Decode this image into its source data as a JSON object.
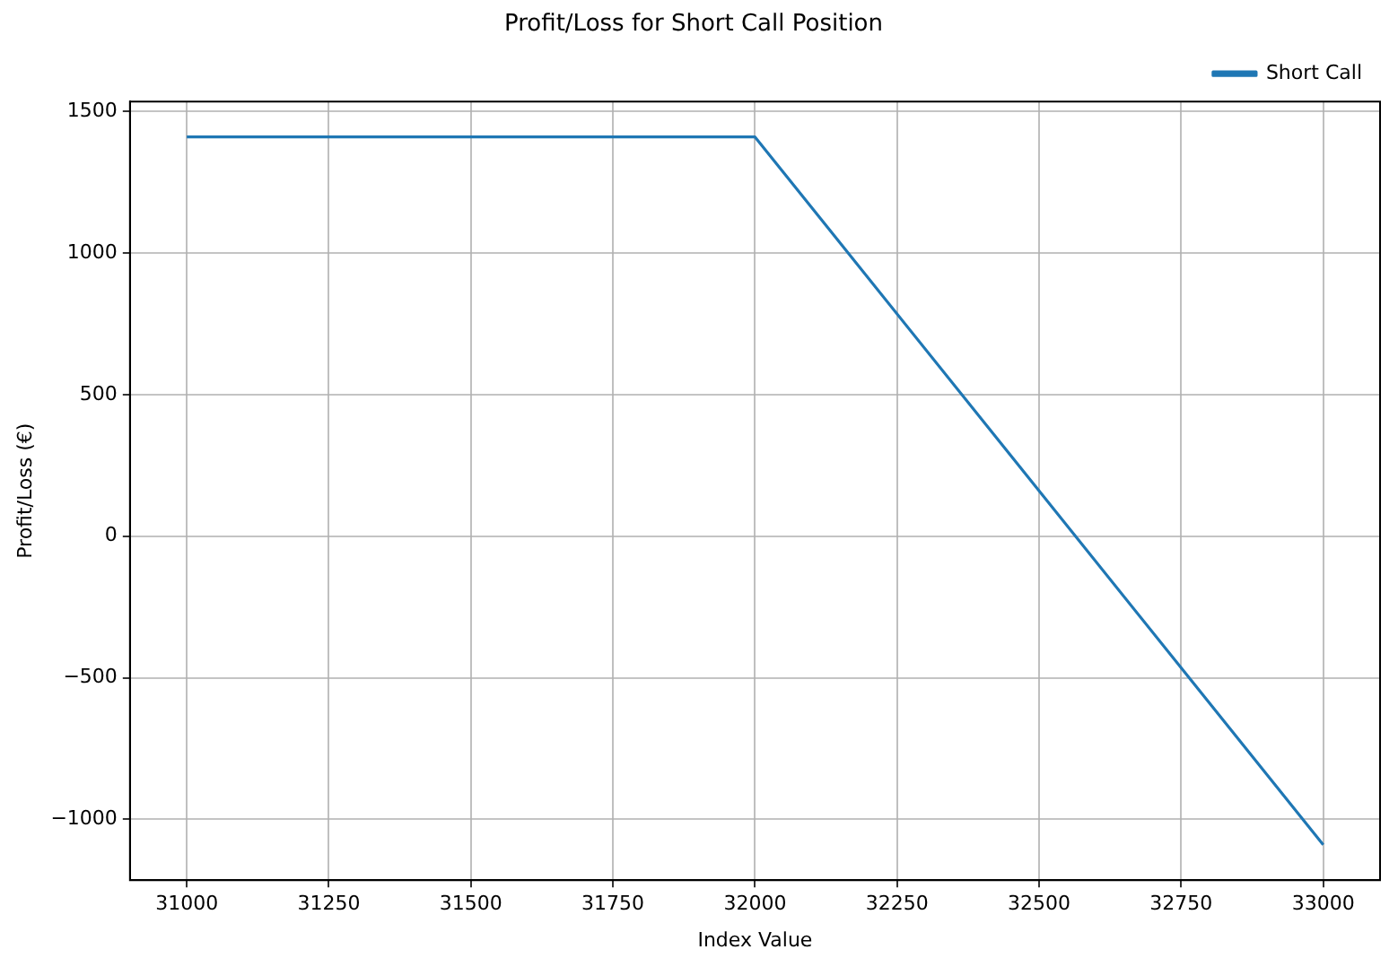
{
  "chart_data": {
    "type": "line",
    "title": "Profit/Loss for Short Call Position",
    "xlabel": "Index Value",
    "ylabel": "Profit/Loss (€)",
    "x": [
      31000,
      32000,
      33000
    ],
    "series": [
      {
        "name": "Short Call",
        "color": "#1f77b4",
        "values": [
          1410,
          1410,
          -1090
        ]
      }
    ],
    "xlim": [
      30900,
      33100
    ],
    "xticks": [
      31000,
      31250,
      31500,
      31750,
      32000,
      32250,
      32500,
      32750,
      33000
    ],
    "ylim": [
      -1215,
      1535
    ],
    "yticks": [
      {
        "value": -1000,
        "label": "−1000"
      },
      {
        "value": -500,
        "label": "−500"
      },
      0,
      500,
      1000,
      1500
    ],
    "grid": true,
    "legend": "top right",
    "marker": "none",
    "line_style": "solid"
  }
}
